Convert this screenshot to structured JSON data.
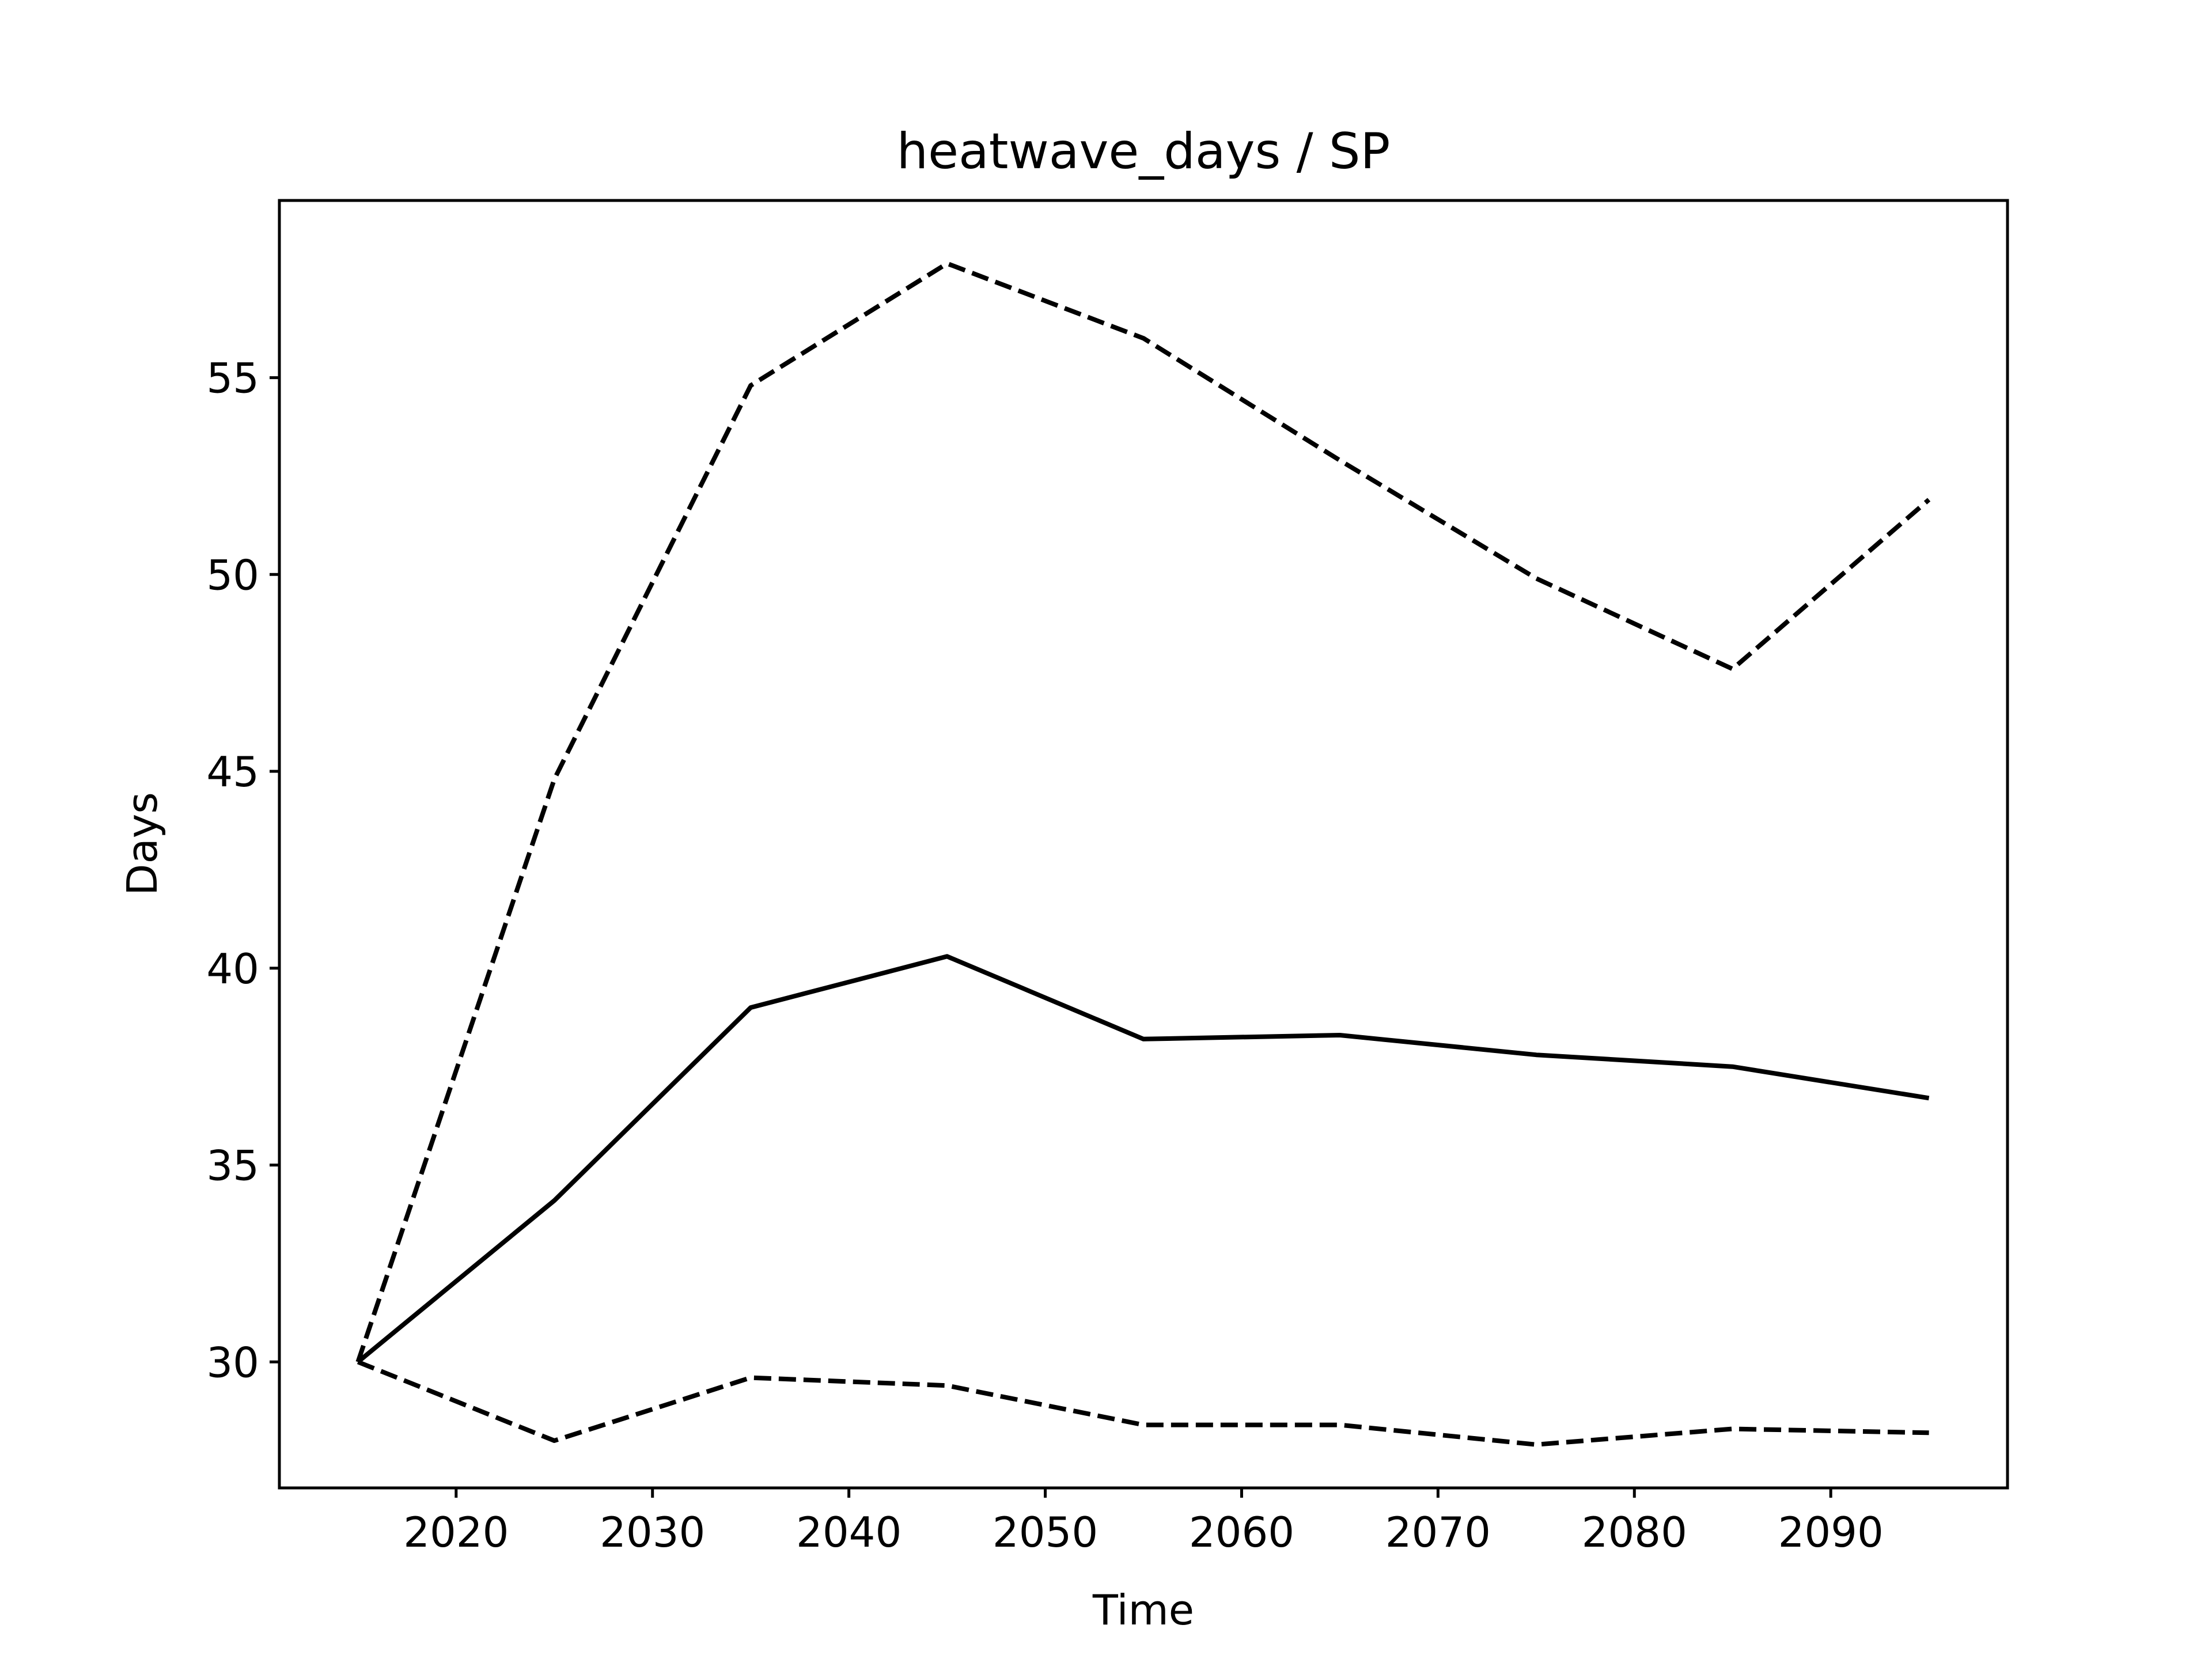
{
  "chart_data": {
    "type": "line",
    "title": "heatwave_days / SP",
    "xlabel": "Time",
    "ylabel": "Days",
    "xlim": [
      2011,
      2099
    ],
    "ylim": [
      26.8,
      59.5
    ],
    "xticks": [
      2020,
      2030,
      2040,
      2050,
      2060,
      2070,
      2080,
      2090
    ],
    "yticks": [
      30,
      35,
      40,
      45,
      50,
      55
    ],
    "grid": false,
    "x": [
      2015,
      2025,
      2035,
      2045,
      2055,
      2065,
      2075,
      2085,
      2095
    ],
    "series": [
      {
        "style": "solid",
        "color": "#000000",
        "values": [
          30.0,
          34.1,
          39.0,
          40.3,
          38.2,
          38.3,
          37.8,
          37.5,
          36.7
        ]
      },
      {
        "style": "dashed",
        "color": "#000000",
        "values": [
          30.0,
          44.8,
          54.8,
          57.9,
          56.0,
          52.9,
          49.9,
          47.6,
          51.9
        ]
      },
      {
        "style": "dashed",
        "color": "#000000",
        "values": [
          30.0,
          28.0,
          29.6,
          29.4,
          28.4,
          28.4,
          27.9,
          28.3,
          28.2
        ]
      }
    ]
  }
}
